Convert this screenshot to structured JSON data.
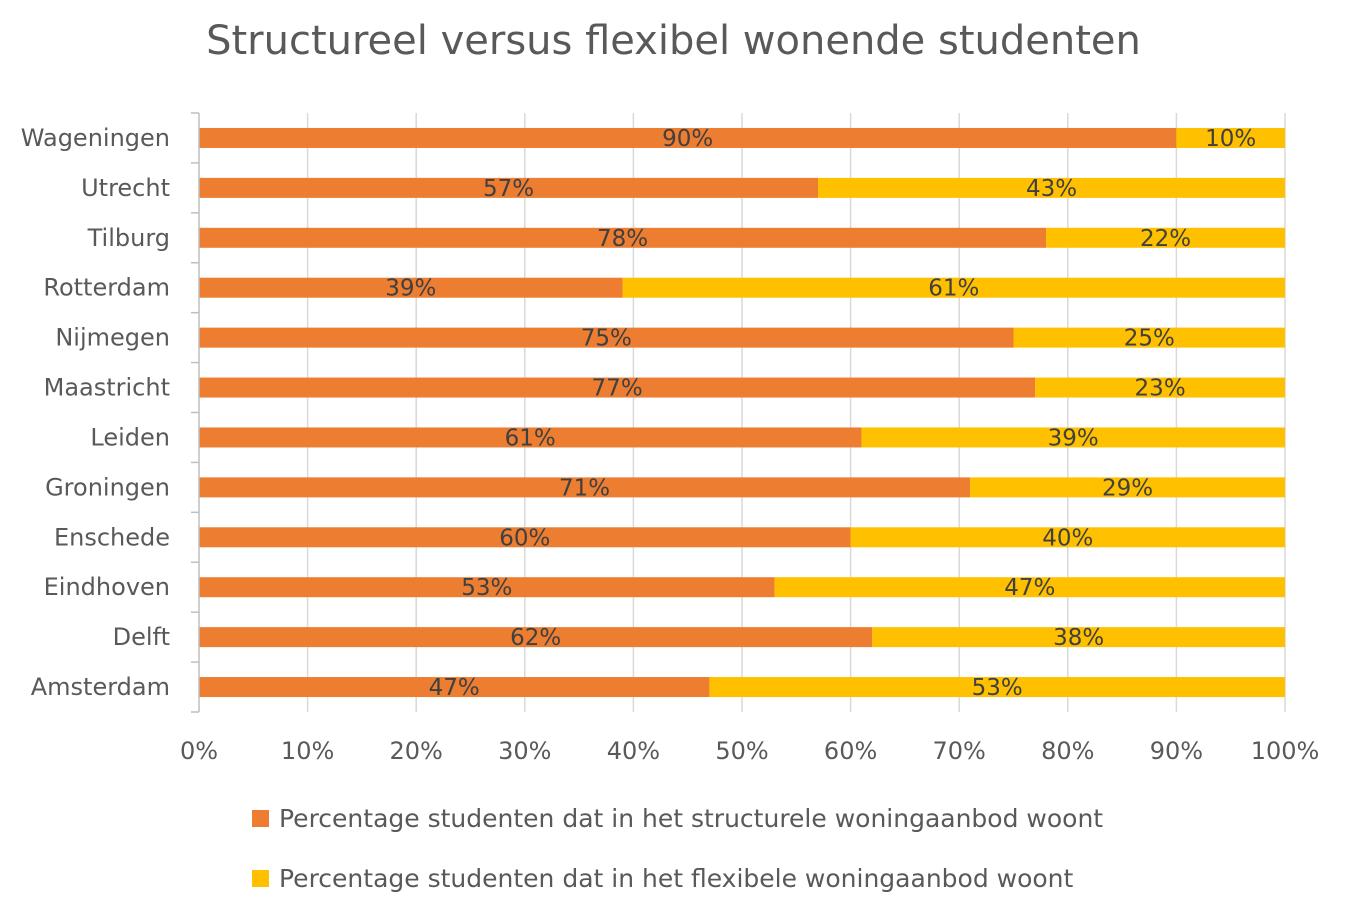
{
  "chart_data": {
    "type": "bar",
    "orientation": "horizontal",
    "stacked": "percent",
    "title": "Structureel versus flexibel wonende studenten",
    "categories": [
      "Wageningen",
      "Utrecht",
      "Tilburg",
      "Rotterdam",
      "Nijmegen",
      "Maastricht",
      "Leiden",
      "Groningen",
      "Enschede",
      "Eindhoven",
      "Delft",
      "Amsterdam"
    ],
    "series": [
      {
        "name": "Percentage studenten dat in het structurele woningaanbod woont",
        "color": "#ED7D31",
        "values": [
          90,
          57,
          78,
          39,
          75,
          77,
          61,
          71,
          60,
          53,
          62,
          47
        ],
        "labels": [
          "90%",
          "57%",
          "78%",
          "39%",
          "75%",
          "77%",
          "61%",
          "71%",
          "60%",
          "53%",
          "62%",
          "47%"
        ]
      },
      {
        "name": "Percentage studenten dat in het flexibele woningaanbod woont",
        "color": "#FFC000",
        "values": [
          10,
          43,
          22,
          61,
          25,
          23,
          39,
          29,
          40,
          47,
          38,
          53
        ],
        "labels": [
          "10%",
          "43%",
          "22%",
          "61%",
          "25%",
          "23%",
          "39%",
          "29%",
          "40%",
          "47%",
          "38%",
          "53%"
        ]
      }
    ],
    "x_ticks": [
      "0%",
      "10%",
      "20%",
      "30%",
      "40%",
      "50%",
      "60%",
      "70%",
      "80%",
      "90%",
      "100%"
    ],
    "xlim": [
      0,
      100
    ],
    "grid": true,
    "legend_position": "bottom"
  }
}
